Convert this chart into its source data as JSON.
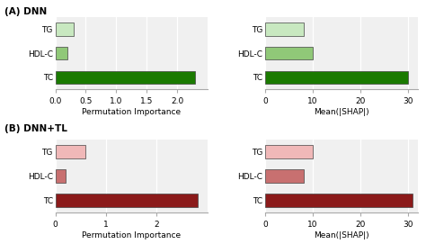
{
  "panel_A_label": "(A) DNN",
  "panel_B_label": "(B) DNN+TL",
  "categories": [
    "TC",
    "HDL-C",
    "TG"
  ],
  "dnn_perm": [
    2.3,
    0.2,
    0.3
  ],
  "dnn_shap": [
    30,
    10,
    8
  ],
  "dnn_colors": [
    "#1a7a00",
    "#90c878",
    "#c8e8c0"
  ],
  "tl_perm": [
    2.8,
    0.2,
    0.6
  ],
  "tl_shap": [
    31,
    8,
    10
  ],
  "tl_colors": [
    "#8b1a1a",
    "#c87070",
    "#f0b8b8"
  ],
  "perm_xlabel": "Permutation Importance",
  "shap_xlabel": "Mean(|SHAP|)",
  "perm_A_xlim": [
    0,
    2.5
  ],
  "shap_A_xlim": [
    0,
    32
  ],
  "perm_B_xlim": [
    0,
    3.0
  ],
  "shap_B_xlim": [
    0,
    32
  ],
  "perm_A_xticks": [
    0.0,
    0.5,
    1.0,
    1.5,
    2.0
  ],
  "shap_A_xticks": [
    0,
    10,
    20,
    30
  ],
  "perm_B_xticks": [
    0,
    1,
    2
  ],
  "shap_B_xticks": [
    0,
    10,
    20,
    30
  ],
  "bg_color": "#f0f0f0",
  "bar_height": 0.55,
  "edge_color": "#444444"
}
